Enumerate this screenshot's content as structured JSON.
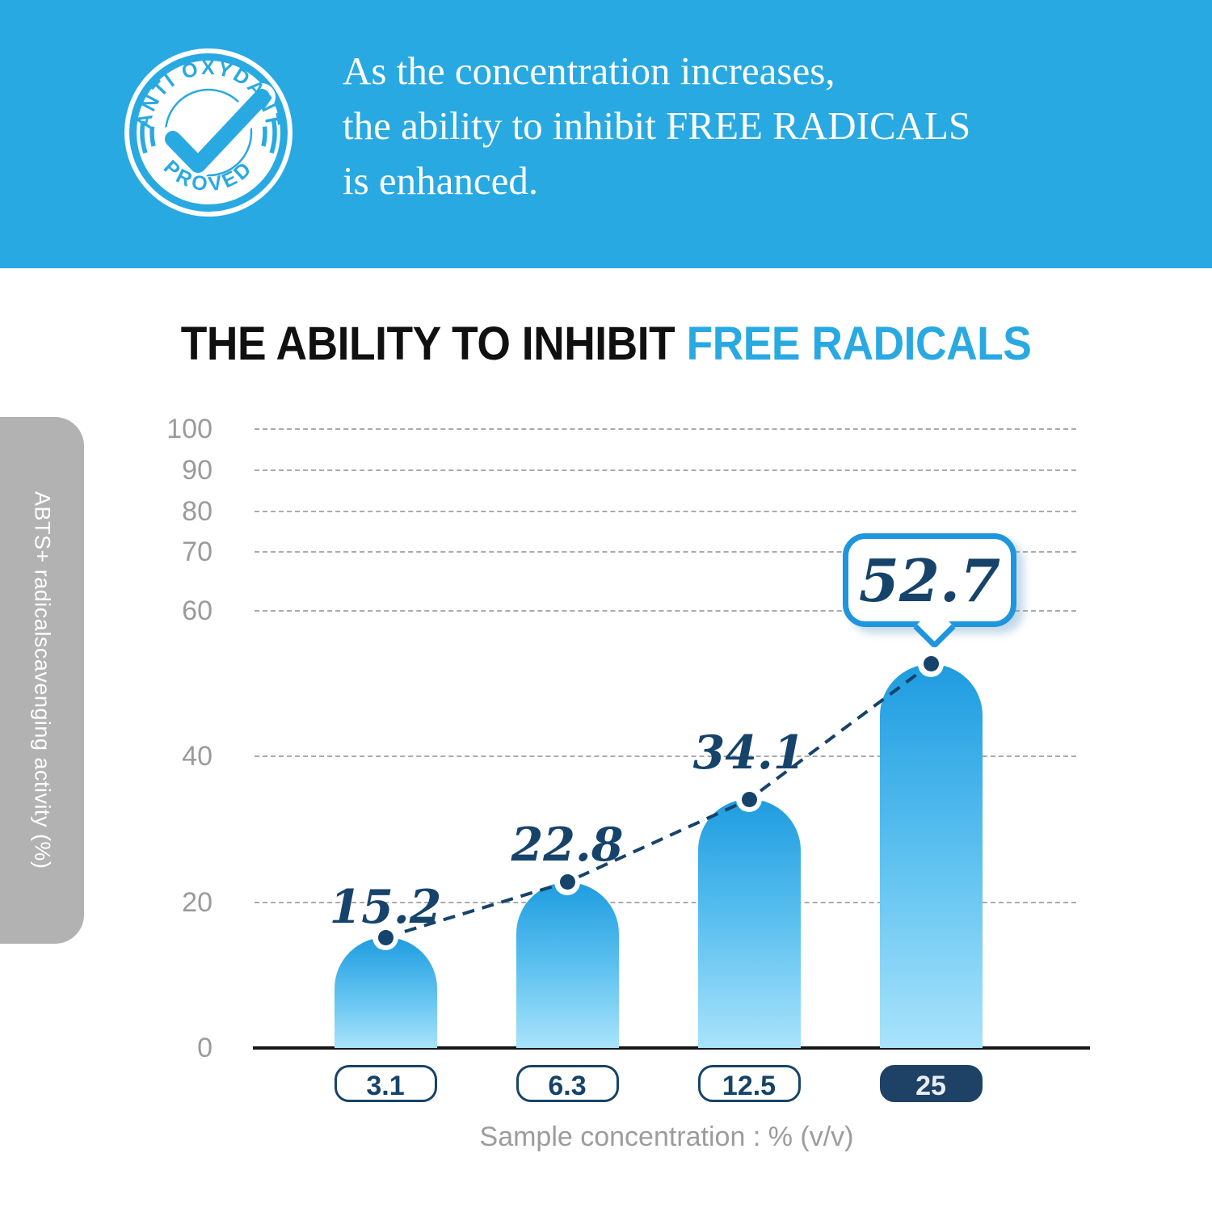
{
  "banner": {
    "bg_color": "#29A9E2",
    "badge": {
      "arc_top": "ANTI OXYDANT",
      "arc_bottom": "PROVED",
      "icon": "checkmark"
    },
    "lines": [
      "As the concentration increases,",
      "the ability to inhibit FREE RADICALS",
      "is enhanced."
    ]
  },
  "title": {
    "prefix": "THE ABILITY TO INHIBIT ",
    "highlight": "FREE RADICALS"
  },
  "chart_data": {
    "type": "bar",
    "title": "THE ABILITY TO INHIBIT FREE RADICALS",
    "categories": [
      "3.1",
      "6.3",
      "12.5",
      "25"
    ],
    "values": [
      15.2,
      22.8,
      34.1,
      52.7
    ],
    "value_labels": [
      "15.2",
      "22.8",
      "34.1",
      "52.7"
    ],
    "highlighted_category": "25",
    "xlabel": "Sample concentration : % (v/v)",
    "ylabel": "ABTS+ radicalscavenging activity (%)",
    "y_ticks": [
      100,
      90,
      80,
      70,
      60,
      40,
      20,
      0
    ],
    "ylim": [
      0,
      100
    ],
    "grid": "horizontal-dashed",
    "legend": null,
    "trend_line": "dashed connector through bar tops",
    "annotations": [
      {
        "target": "25",
        "text": "52.7",
        "style": "speech-bubble"
      }
    ],
    "colors": {
      "blue": "#29A9E2",
      "navy": "#16436A",
      "bar_top": "#1E9CE0",
      "bar_mid": "#5FC2F0",
      "bar_bottom": "#A9E3FB",
      "grid": "#ABABAB",
      "tick_text": "#9B9B9B",
      "axis_label": "#9C9C9C",
      "callout_border": "#1E96DF",
      "highlight_box_bg": "#1D4266"
    }
  }
}
